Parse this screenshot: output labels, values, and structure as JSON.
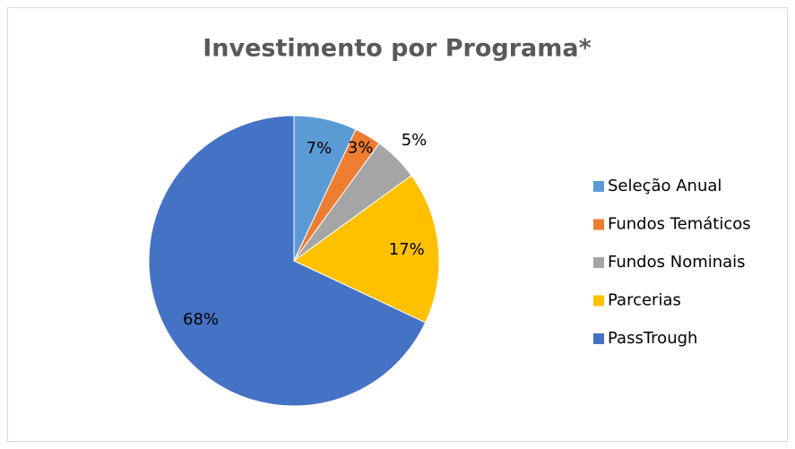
{
  "chart_data": {
    "type": "pie",
    "title": "Investimento por Programa*",
    "categories": [
      "Seleção Anual",
      "Fundos Temáticos",
      "Fundos Nominais",
      "Parcerias",
      "PassTrough"
    ],
    "values": [
      7,
      3,
      5,
      17,
      68
    ],
    "value_labels": [
      "7%",
      "3%",
      "5%",
      "17%",
      "68%"
    ],
    "colors": [
      "#5b9bd5",
      "#ed7d31",
      "#a5a5a5",
      "#ffc000",
      "#4472c4"
    ],
    "legend": "right"
  }
}
